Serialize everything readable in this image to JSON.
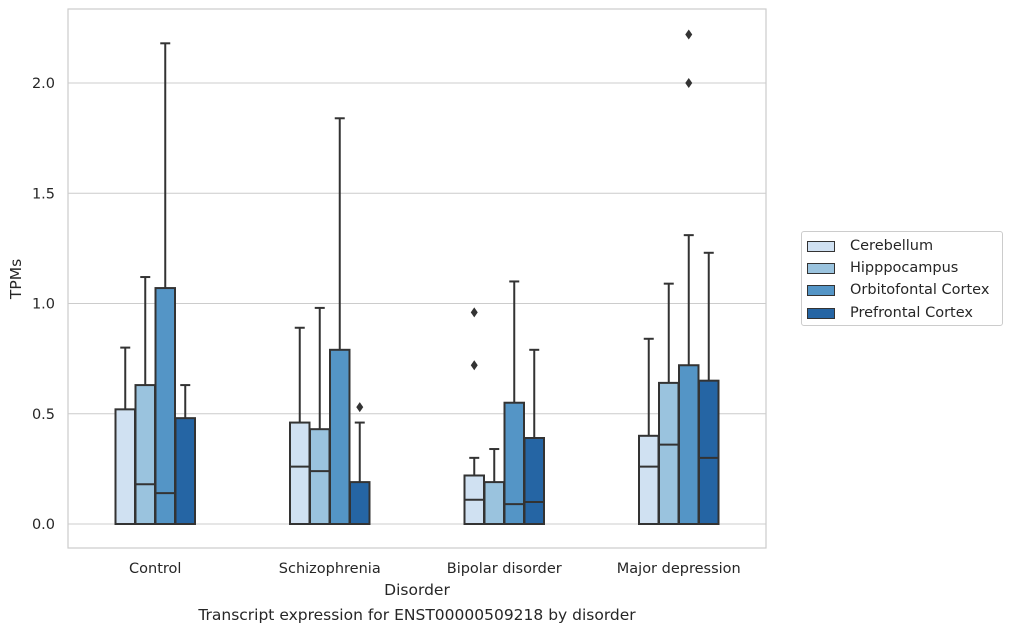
{
  "caption": "Transcript expression for ENST00000509218 by disorder",
  "chart_data": {
    "type": "boxplot",
    "title": "",
    "xlabel": "Disorder",
    "ylabel": "TPMs",
    "ylim": [
      -0.1,
      2.35
    ],
    "yticks": [
      0.0,
      0.5,
      1.0,
      1.5,
      2.0
    ],
    "ytick_labels": [
      "0.0",
      "0.5",
      "1.0",
      "1.5",
      "2.0"
    ],
    "grid": "horizontal",
    "legend_position": "right-outside",
    "categories": [
      "Control",
      "Schizophrenia",
      "Bipolar disorder",
      "Major depression"
    ],
    "series": [
      {
        "name": "Cerebellum",
        "color": "#d0e1f2",
        "boxes": [
          {
            "q1": 0.0,
            "median": 0.0,
            "q3": 0.52,
            "whislo": 0.0,
            "whishi": 0.8,
            "fliers": []
          },
          {
            "q1": 0.0,
            "median": 0.26,
            "q3": 0.46,
            "whislo": 0.0,
            "whishi": 0.89,
            "fliers": []
          },
          {
            "q1": 0.0,
            "median": 0.11,
            "q3": 0.22,
            "whislo": 0.0,
            "whishi": 0.3,
            "fliers": [
              0.72,
              0.96
            ]
          },
          {
            "q1": 0.0,
            "median": 0.26,
            "q3": 0.4,
            "whislo": 0.0,
            "whishi": 0.84,
            "fliers": []
          }
        ]
      },
      {
        "name": "Hipppocampus",
        "color": "#9ac3de",
        "boxes": [
          {
            "q1": 0.0,
            "median": 0.18,
            "q3": 0.63,
            "whislo": 0.0,
            "whishi": 1.12,
            "fliers": []
          },
          {
            "q1": 0.0,
            "median": 0.24,
            "q3": 0.43,
            "whislo": 0.0,
            "whishi": 0.98,
            "fliers": []
          },
          {
            "q1": 0.0,
            "median": 0.0,
            "q3": 0.19,
            "whislo": 0.0,
            "whishi": 0.34,
            "fliers": []
          },
          {
            "q1": 0.0,
            "median": 0.36,
            "q3": 0.64,
            "whislo": 0.0,
            "whishi": 1.09,
            "fliers": []
          }
        ]
      },
      {
        "name": "Orbitofontal Cortex",
        "color": "#5495c6",
        "boxes": [
          {
            "q1": 0.0,
            "median": 0.14,
            "q3": 1.07,
            "whislo": 0.0,
            "whishi": 2.18,
            "fliers": []
          },
          {
            "q1": 0.0,
            "median": 0.0,
            "q3": 0.79,
            "whislo": 0.0,
            "whishi": 1.84,
            "fliers": []
          },
          {
            "q1": 0.0,
            "median": 0.09,
            "q3": 0.55,
            "whislo": 0.0,
            "whishi": 1.1,
            "fliers": []
          },
          {
            "q1": 0.0,
            "median": 0.0,
            "q3": 0.72,
            "whislo": 0.0,
            "whishi": 1.31,
            "fliers": [
              2.0,
              2.22
            ]
          }
        ]
      },
      {
        "name": "Prefrontal Cortex",
        "color": "#2565a4",
        "boxes": [
          {
            "q1": 0.0,
            "median": 0.0,
            "q3": 0.48,
            "whislo": 0.0,
            "whishi": 0.63,
            "fliers": []
          },
          {
            "q1": 0.0,
            "median": 0.0,
            "q3": 0.19,
            "whislo": 0.0,
            "whishi": 0.46,
            "fliers": [
              0.53
            ]
          },
          {
            "q1": 0.0,
            "median": 0.1,
            "q3": 0.39,
            "whislo": 0.0,
            "whishi": 0.79,
            "fliers": []
          },
          {
            "q1": 0.0,
            "median": 0.3,
            "q3": 0.65,
            "whislo": 0.0,
            "whishi": 1.23,
            "fliers": []
          }
        ]
      }
    ]
  }
}
